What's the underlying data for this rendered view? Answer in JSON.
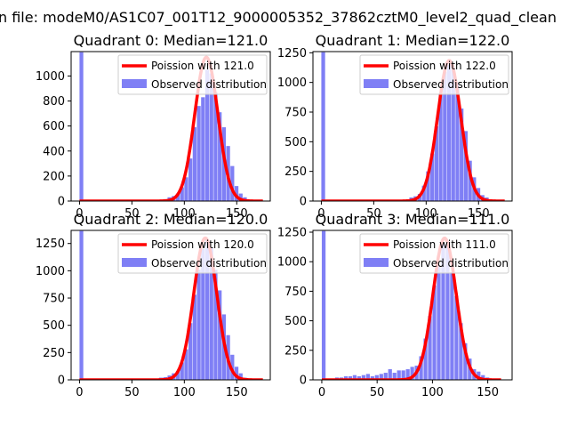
{
  "figure_title": "n file: modeM0/AS1C07_001T12_9000005352_37862cztM0_level2_quad_clean",
  "colors": {
    "histogram": "#7f7ff5",
    "poisson_line": "#ff0000",
    "axes": "#000000"
  },
  "chart_data": [
    {
      "type": "bar",
      "title": "Quadrant 0: Median=121.0",
      "legend": {
        "placement": "top-right",
        "line_label": "Poission with 121.0",
        "hist_label": "Observed distribution"
      },
      "xlim": [
        -8,
        182
      ],
      "ylim": [
        0,
        1195
      ],
      "xticks": [
        0,
        50,
        100,
        150
      ],
      "yticks": [
        0,
        200,
        400,
        600,
        800,
        1000
      ],
      "bin_width": 3.6,
      "hist": [
        [
          0,
          1190
        ],
        [
          72,
          5
        ],
        [
          76,
          10
        ],
        [
          80,
          15
        ],
        [
          84,
          30
        ],
        [
          88,
          40
        ],
        [
          92,
          60
        ],
        [
          96,
          110
        ],
        [
          100,
          190
        ],
        [
          104,
          340
        ],
        [
          108,
          590
        ],
        [
          112,
          760
        ],
        [
          116,
          830
        ],
        [
          120,
          1050
        ],
        [
          124,
          1020
        ],
        [
          128,
          870
        ],
        [
          132,
          710
        ],
        [
          136,
          590
        ],
        [
          140,
          440
        ],
        [
          144,
          280
        ],
        [
          148,
          120
        ],
        [
          152,
          60
        ],
        [
          156,
          30
        ],
        [
          160,
          10
        ]
      ],
      "poisson": {
        "mean": 121.0,
        "peak": 1150,
        "sigma": 11.0,
        "x_range": [
          0,
          175
        ]
      }
    },
    {
      "type": "bar",
      "title": "Quadrant 1: Median=122.0",
      "legend": {
        "placement": "top-right",
        "line_label": "Poission with 122.0",
        "hist_label": "Observed distribution"
      },
      "xlim": [
        -8,
        182
      ],
      "ylim": [
        0,
        1260
      ],
      "xticks": [
        0,
        50,
        100,
        150
      ],
      "yticks": [
        0,
        250,
        500,
        750,
        1000,
        1250
      ],
      "bin_width": 3.6,
      "hist": [
        [
          0,
          1255
        ],
        [
          28,
          10
        ],
        [
          60,
          5
        ],
        [
          76,
          10
        ],
        [
          80,
          10
        ],
        [
          84,
          30
        ],
        [
          88,
          40
        ],
        [
          92,
          60
        ],
        [
          96,
          130
        ],
        [
          100,
          250
        ],
        [
          104,
          400
        ],
        [
          108,
          630
        ],
        [
          112,
          910
        ],
        [
          116,
          1090
        ],
        [
          120,
          1150
        ],
        [
          124,
          1110
        ],
        [
          128,
          1000
        ],
        [
          132,
          780
        ],
        [
          136,
          590
        ],
        [
          140,
          340
        ],
        [
          144,
          200
        ],
        [
          148,
          110
        ],
        [
          152,
          50
        ],
        [
          156,
          30
        ],
        [
          160,
          10
        ]
      ],
      "poisson": {
        "mean": 122.0,
        "peak": 1185,
        "sigma": 11.0,
        "x_range": [
          0,
          175
        ]
      }
    },
    {
      "type": "bar",
      "title": "Quadrant 2: Median=120.0",
      "legend": {
        "placement": "top-right",
        "line_label": "Poission with 120.0",
        "hist_label": "Observed distribution"
      },
      "xlim": [
        -8,
        182
      ],
      "ylim": [
        0,
        1370
      ],
      "xticks": [
        0,
        50,
        100,
        150
      ],
      "yticks": [
        0,
        250,
        500,
        750,
        1000,
        1250
      ],
      "bin_width": 3.6,
      "hist": [
        [
          0,
          1365
        ],
        [
          72,
          10
        ],
        [
          76,
          20
        ],
        [
          80,
          25
        ],
        [
          84,
          40
        ],
        [
          88,
          60
        ],
        [
          92,
          80
        ],
        [
          96,
          160
        ],
        [
          100,
          280
        ],
        [
          104,
          520
        ],
        [
          108,
          780
        ],
        [
          112,
          1010
        ],
        [
          116,
          1200
        ],
        [
          120,
          1280
        ],
        [
          124,
          1210
        ],
        [
          128,
          1010
        ],
        [
          132,
          820
        ],
        [
          136,
          600
        ],
        [
          140,
          410
        ],
        [
          144,
          230
        ],
        [
          148,
          120
        ],
        [
          152,
          60
        ],
        [
          156,
          20
        ],
        [
          160,
          10
        ]
      ],
      "poisson": {
        "mean": 120.0,
        "peak": 1300,
        "sigma": 11.0,
        "x_range": [
          0,
          175
        ]
      }
    },
    {
      "type": "bar",
      "title": "Quadrant 3: Median=111.0",
      "legend": {
        "placement": "top-right",
        "line_label": "Poission with 111.0",
        "hist_label": "Observed distribution"
      },
      "xlim": [
        -8,
        172
      ],
      "ylim": [
        0,
        1265
      ],
      "xticks": [
        0,
        50,
        100,
        150
      ],
      "yticks": [
        0,
        250,
        500,
        750,
        1000,
        1250
      ],
      "bin_width": 3.4,
      "hist": [
        [
          0,
          1260
        ],
        [
          8,
          10
        ],
        [
          12,
          20
        ],
        [
          16,
          20
        ],
        [
          20,
          30
        ],
        [
          24,
          30
        ],
        [
          28,
          40
        ],
        [
          32,
          30
        ],
        [
          36,
          40
        ],
        [
          40,
          50
        ],
        [
          44,
          30
        ],
        [
          48,
          40
        ],
        [
          52,
          50
        ],
        [
          56,
          60
        ],
        [
          60,
          90
        ],
        [
          64,
          60
        ],
        [
          68,
          80
        ],
        [
          72,
          80
        ],
        [
          76,
          90
        ],
        [
          80,
          110
        ],
        [
          84,
          120
        ],
        [
          88,
          200
        ],
        [
          92,
          350
        ],
        [
          96,
          540
        ],
        [
          100,
          800
        ],
        [
          104,
          970
        ],
        [
          108,
          1150
        ],
        [
          112,
          1150
        ],
        [
          116,
          910
        ],
        [
          120,
          710
        ],
        [
          124,
          480
        ],
        [
          128,
          310
        ],
        [
          132,
          180
        ],
        [
          136,
          90
        ],
        [
          140,
          70
        ],
        [
          144,
          40
        ],
        [
          148,
          20
        ]
      ],
      "poisson": {
        "mean": 111.0,
        "peak": 1200,
        "sigma": 10.5,
        "x_range": [
          0,
          162
        ]
      }
    }
  ]
}
